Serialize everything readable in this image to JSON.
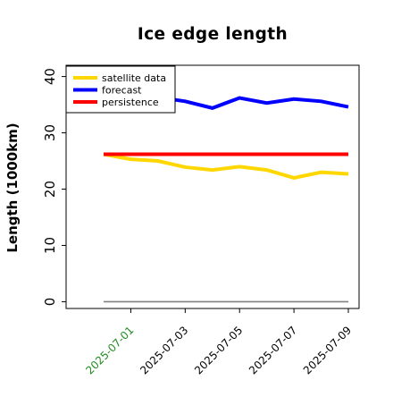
{
  "chart_data": {
    "type": "line",
    "title": "Ice edge length",
    "xlabel": "",
    "ylabel": "Length (1000km)",
    "ylim": [
      -1.2,
      42
    ],
    "xlim": [
      "2025-06-30",
      "2025-07-09"
    ],
    "x_tick_values": [
      "2025-07-01",
      "2025-07-03",
      "2025-07-05",
      "2025-07-07",
      "2025-07-09"
    ],
    "x_tick_labels": [
      "2025-07-01",
      "2025-07-03",
      "2025-07-05",
      "2025-07-07",
      "2025-07-09"
    ],
    "x_tick_label_colors": [
      "#228b22",
      "#000000",
      "#000000",
      "#000000",
      "#000000"
    ],
    "y_ticks": [
      0,
      10,
      20,
      30,
      40
    ],
    "y_tick_labels": [
      "0",
      "10",
      "20",
      "30",
      "40"
    ],
    "grid": false,
    "legend_position": "top-left",
    "x": [
      "2025-06-30",
      "2025-07-01",
      "2025-07-02",
      "2025-07-03",
      "2025-07-04",
      "2025-07-05",
      "2025-07-06",
      "2025-07-07",
      "2025-07-08",
      "2025-07-09"
    ],
    "series": [
      {
        "name": "satellite data",
        "color": "#ffd700",
        "values": [
          26.2,
          25.3,
          25.0,
          23.9,
          23.4,
          24.0,
          23.4,
          22.0,
          23.0,
          22.7
        ]
      },
      {
        "name": "forecast",
        "color": "#0000ff",
        "values": [
          null,
          null,
          36.3,
          35.6,
          34.4,
          36.2,
          35.3,
          36.0,
          35.6,
          34.6
        ]
      },
      {
        "name": "persistence",
        "color": "#ff0000",
        "values": [
          26.2,
          26.2,
          26.2,
          26.2,
          26.2,
          26.2,
          26.2,
          26.2,
          26.2,
          26.2
        ]
      }
    ],
    "reference_line": {
      "value": 0,
      "color": "#808080"
    }
  }
}
